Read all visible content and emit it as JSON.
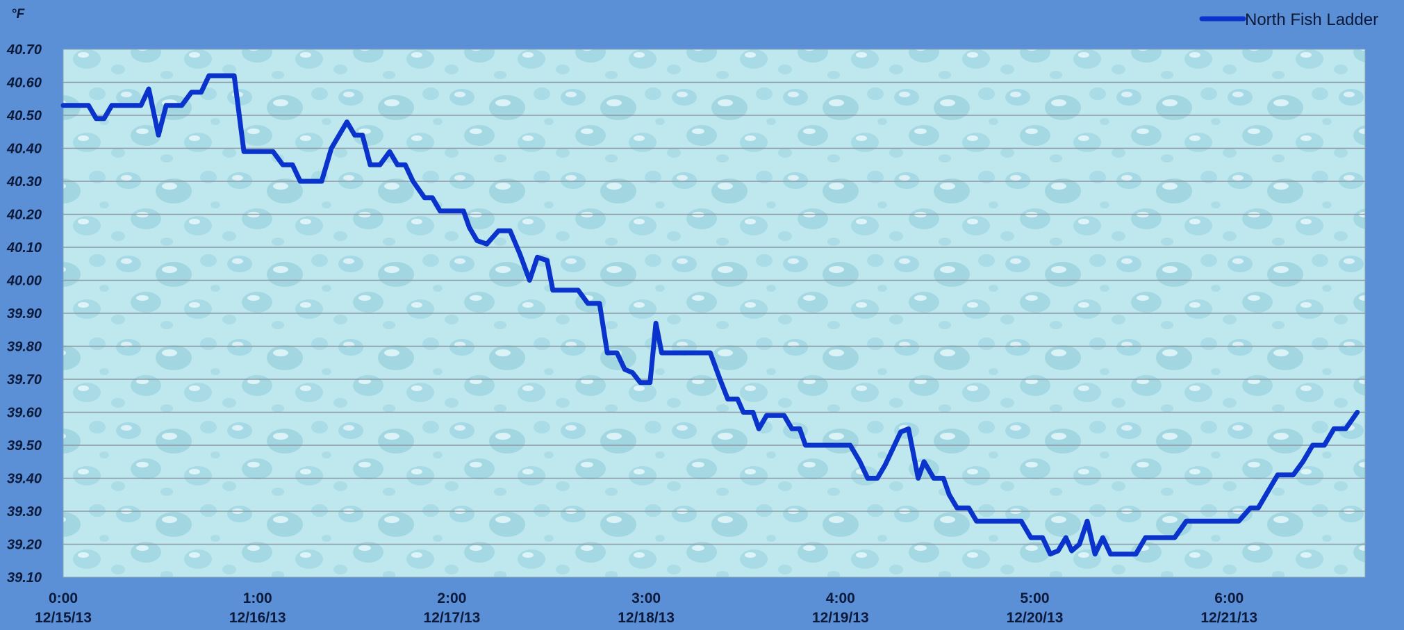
{
  "chart_data": {
    "type": "line",
    "title": "",
    "ylabel": "°F",
    "xlabel": "",
    "ylim": [
      39.1,
      40.7
    ],
    "y_ticks": [
      "40.70",
      "40.60",
      "40.50",
      "40.40",
      "40.30",
      "40.20",
      "40.10",
      "40.00",
      "39.90",
      "39.80",
      "39.70",
      "39.60",
      "39.50",
      "39.40",
      "39.30",
      "39.20",
      "39.10"
    ],
    "x_ticks": [
      {
        "time": "0:00",
        "date": "12/15/13"
      },
      {
        "time": "1:00",
        "date": "12/16/13"
      },
      {
        "time": "2:00",
        "date": "12/17/13"
      },
      {
        "time": "3:00",
        "date": "12/18/13"
      },
      {
        "time": "4:00",
        "date": "12/19/13"
      },
      {
        "time": "5:00",
        "date": "12/20/13"
      },
      {
        "time": "6:00",
        "date": "12/21/13"
      }
    ],
    "xlim_days": [
      0,
      6.7
    ],
    "grid": true,
    "legend_position": "top-right",
    "series": [
      {
        "name": "North Fish Ladder",
        "color": "#0a33cc",
        "points": [
          [
            0.0,
            40.53
          ],
          [
            0.1,
            40.53
          ],
          [
            0.13,
            40.53
          ],
          [
            0.17,
            40.49
          ],
          [
            0.21,
            40.49
          ],
          [
            0.25,
            40.53
          ],
          [
            0.28,
            40.53
          ],
          [
            0.36,
            40.53
          ],
          [
            0.4,
            40.53
          ],
          [
            0.44,
            40.58
          ],
          [
            0.49,
            40.44
          ],
          [
            0.53,
            40.53
          ],
          [
            0.56,
            40.53
          ],
          [
            0.61,
            40.53
          ],
          [
            0.66,
            40.57
          ],
          [
            0.71,
            40.57
          ],
          [
            0.75,
            40.62
          ],
          [
            0.82,
            40.62
          ],
          [
            0.88,
            40.62
          ],
          [
            0.93,
            40.39
          ],
          [
            0.97,
            40.39
          ],
          [
            1.02,
            40.39
          ],
          [
            1.08,
            40.39
          ],
          [
            1.13,
            40.35
          ],
          [
            1.18,
            40.35
          ],
          [
            1.22,
            40.3
          ],
          [
            1.27,
            40.3
          ],
          [
            1.33,
            40.3
          ],
          [
            1.38,
            40.4
          ],
          [
            1.46,
            40.48
          ],
          [
            1.5,
            40.44
          ],
          [
            1.54,
            40.44
          ],
          [
            1.58,
            40.35
          ],
          [
            1.63,
            40.35
          ],
          [
            1.68,
            40.39
          ],
          [
            1.72,
            40.35
          ],
          [
            1.76,
            40.35
          ],
          [
            1.8,
            40.3
          ],
          [
            1.86,
            40.25
          ],
          [
            1.9,
            40.25
          ],
          [
            1.94,
            40.21
          ],
          [
            2.0,
            40.21
          ],
          [
            2.06,
            40.21
          ],
          [
            2.09,
            40.16
          ],
          [
            2.13,
            40.12
          ],
          [
            2.18,
            40.11
          ],
          [
            2.24,
            40.15
          ],
          [
            2.3,
            40.15
          ],
          [
            2.35,
            40.08
          ],
          [
            2.4,
            40.0
          ],
          [
            2.44,
            40.07
          ],
          [
            2.49,
            40.06
          ],
          [
            2.52,
            39.97
          ],
          [
            2.58,
            39.97
          ],
          [
            2.65,
            39.97
          ],
          [
            2.7,
            39.93
          ],
          [
            2.76,
            39.93
          ],
          [
            2.8,
            39.78
          ],
          [
            2.85,
            39.78
          ],
          [
            2.89,
            39.73
          ],
          [
            2.93,
            39.72
          ],
          [
            2.97,
            39.69
          ],
          [
            3.02,
            39.69
          ],
          [
            3.05,
            39.87
          ],
          [
            3.08,
            39.78
          ],
          [
            3.15,
            39.78
          ],
          [
            3.25,
            39.78
          ],
          [
            3.33,
            39.78
          ],
          [
            3.38,
            39.7
          ],
          [
            3.42,
            39.64
          ],
          [
            3.47,
            39.64
          ],
          [
            3.5,
            39.6
          ],
          [
            3.55,
            39.6
          ],
          [
            3.58,
            39.55
          ],
          [
            3.62,
            39.59
          ],
          [
            3.66,
            39.59
          ],
          [
            3.71,
            39.59
          ],
          [
            3.75,
            39.55
          ],
          [
            3.79,
            39.55
          ],
          [
            3.82,
            39.5
          ],
          [
            3.88,
            39.5
          ],
          [
            3.95,
            39.5
          ],
          [
            4.05,
            39.5
          ],
          [
            4.1,
            39.45
          ],
          [
            4.14,
            39.4
          ],
          [
            4.19,
            39.4
          ],
          [
            4.23,
            39.44
          ],
          [
            4.27,
            39.49
          ],
          [
            4.31,
            39.54
          ],
          [
            4.35,
            39.55
          ],
          [
            4.4,
            39.4
          ],
          [
            4.43,
            39.45
          ],
          [
            4.48,
            39.4
          ],
          [
            4.53,
            39.4
          ],
          [
            4.56,
            39.35
          ],
          [
            4.6,
            39.31
          ],
          [
            4.66,
            39.31
          ],
          [
            4.7,
            39.27
          ],
          [
            4.76,
            39.27
          ],
          [
            4.83,
            39.27
          ],
          [
            4.93,
            39.27
          ],
          [
            4.98,
            39.22
          ],
          [
            5.04,
            39.22
          ],
          [
            5.08,
            39.17
          ],
          [
            5.12,
            39.18
          ],
          [
            5.16,
            39.22
          ],
          [
            5.19,
            39.18
          ],
          [
            5.23,
            39.2
          ],
          [
            5.27,
            39.27
          ],
          [
            5.31,
            39.17
          ],
          [
            5.35,
            39.22
          ],
          [
            5.39,
            39.17
          ],
          [
            5.45,
            39.17
          ],
          [
            5.52,
            39.17
          ],
          [
            5.57,
            39.22
          ],
          [
            5.64,
            39.22
          ],
          [
            5.72,
            39.22
          ],
          [
            5.78,
            39.27
          ],
          [
            5.86,
            39.27
          ],
          [
            5.95,
            39.27
          ],
          [
            6.05,
            39.27
          ],
          [
            6.11,
            39.31
          ],
          [
            6.15,
            39.31
          ],
          [
            6.2,
            39.36
          ],
          [
            6.25,
            39.41
          ],
          [
            6.33,
            39.41
          ],
          [
            6.38,
            39.45
          ],
          [
            6.43,
            39.5
          ],
          [
            6.49,
            39.5
          ],
          [
            6.54,
            39.55
          ],
          [
            6.6,
            39.55
          ],
          [
            6.66,
            39.6
          ]
        ]
      }
    ]
  }
}
